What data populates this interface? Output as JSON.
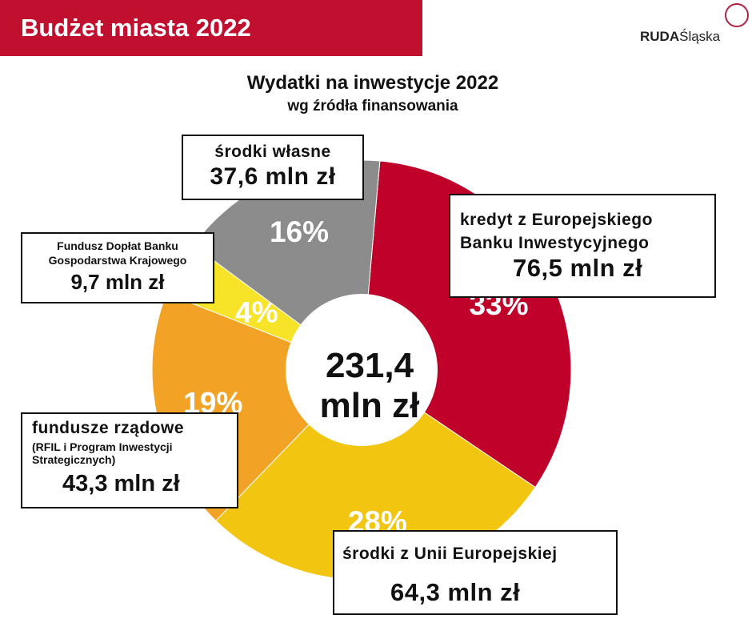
{
  "header": {
    "title": "Budżet miasta 2022",
    "logo_text_bold": "RUDA",
    "logo_text": "Śląska",
    "logo_mark": "R"
  },
  "chart_data": {
    "type": "pie",
    "title": "Wydatki na inwestycje 2022",
    "subtitle": "wg źródła finansowania",
    "center_label": [
      "231,4",
      "mln zł"
    ],
    "unit": "mln zł",
    "total": 231.4,
    "slices": [
      {
        "name": "kredyt z Europejskiego Banku Inwestycyjnego",
        "name_lines": [
          "kredyt z Europejskiego",
          "Banku Inwestycyjnego"
        ],
        "value": 76.5,
        "value_label": "76,5 mln zł",
        "percent": "33%",
        "color": "#c0022a"
      },
      {
        "name": "środki z Unii Europejskiej",
        "name_lines": [
          "środki z Unii Europejskiej"
        ],
        "value": 64.3,
        "value_label": "64,3 mln zł",
        "percent": "28%",
        "color": "#f2c511"
      },
      {
        "name": "fundusze rządowe",
        "name_lines": [
          "fundusze rządowe",
          "(RFIL i Program Inwestycji",
          "Strategicznych)"
        ],
        "value": 43.3,
        "value_label": "43,3 mln zł",
        "percent": "19%",
        "color": "#f2a325"
      },
      {
        "name": "Fundusz Dopłat Banku Gospodarstwa Krajowego",
        "name_lines": [
          "Fundusz Dopłat Banku",
          "Gospodarstwa Krajowego"
        ],
        "value": 9.7,
        "value_label": "9,7 mln zł",
        "percent": "4%",
        "color": "#f7e428"
      },
      {
        "name": "środki własne",
        "name_lines": [
          "środki własne"
        ],
        "value": 37.6,
        "value_label": "37,6 mln zł",
        "percent": "16%",
        "color": "#8c8c8c"
      }
    ]
  }
}
